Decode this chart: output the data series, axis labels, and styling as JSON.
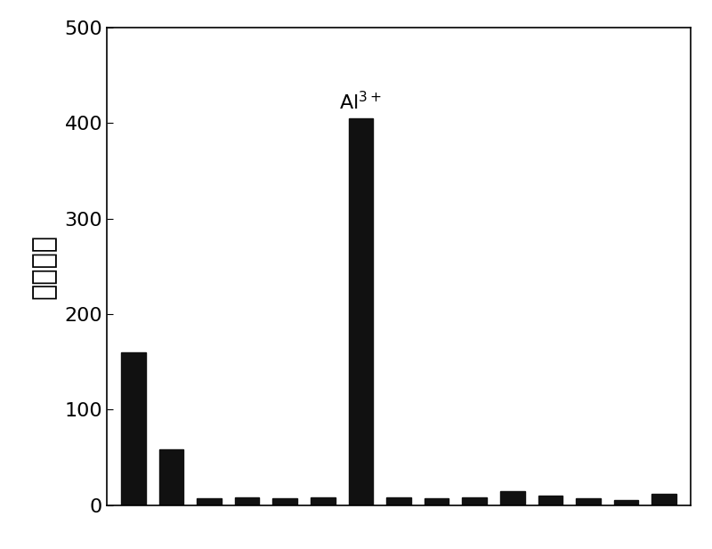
{
  "bar_values": [
    160,
    58,
    7,
    8,
    7,
    8,
    405,
    8,
    7,
    8,
    15,
    10,
    7,
    5,
    12
  ],
  "al3plus_bar_index": 6,
  "ylabel": "荧光强度",
  "ylim": [
    0,
    500
  ],
  "yticks": [
    0,
    100,
    200,
    300,
    400,
    500
  ],
  "background_color": "#ffffff",
  "bar_color": "#111111",
  "bar_width": 0.65,
  "annotation_fontsize": 16,
  "ylabel_fontsize": 22,
  "tick_fontsize": 16,
  "axis_linewidth": 1.2,
  "figsize": [
    8.0,
    6.17
  ],
  "dpi": 100
}
